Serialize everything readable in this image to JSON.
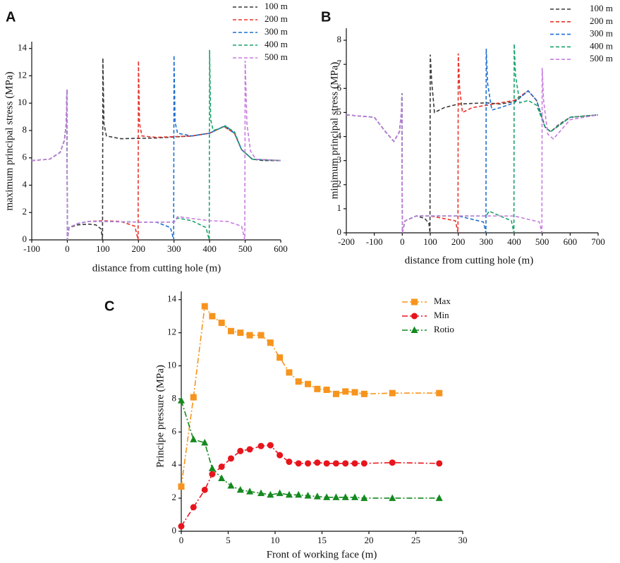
{
  "chart_data": [
    {
      "type": "line",
      "label": "A",
      "xlabel": "distance from cutting hole (m)",
      "ylabel": "maximum principal stress (MPa)",
      "xlim": [
        -100,
        600
      ],
      "ylim": [
        0,
        14.5
      ],
      "xticks": [
        -100,
        0,
        100,
        200,
        300,
        400,
        500,
        600
      ],
      "yticks": [
        0,
        2,
        4,
        6,
        8,
        10,
        12,
        14
      ],
      "line_style": "dashed",
      "series": [
        {
          "name": "100 m",
          "color": "#3a3a3a",
          "x": [
            -100,
            -50,
            -20,
            -8,
            -3,
            -1,
            0,
            5,
            30,
            60,
            80,
            95,
            99,
            100,
            103,
            110,
            150,
            250,
            350,
            400,
            440,
            470,
            490,
            520,
            550,
            600
          ],
          "values": [
            5.8,
            5.9,
            6.4,
            7.3,
            8.5,
            11,
            0,
            0.9,
            1.1,
            1.15,
            1.1,
            0.8,
            0,
            13.3,
            8.5,
            7.6,
            7.4,
            7.45,
            7.6,
            7.8,
            8.3,
            7.8,
            6.6,
            5.9,
            5.8,
            5.8
          ]
        },
        {
          "name": "200 m",
          "color": "#e8332a",
          "x": [
            -100,
            -50,
            -20,
            -8,
            -3,
            -1,
            0,
            5,
            30,
            60,
            100,
            150,
            190,
            199,
            200,
            203,
            210,
            250,
            350,
            400,
            440,
            470,
            490,
            520,
            600
          ],
          "values": [
            5.8,
            5.9,
            6.4,
            7.3,
            8.5,
            11,
            0,
            0.9,
            1.2,
            1.35,
            1.4,
            1.35,
            1.0,
            0,
            13.1,
            8.5,
            7.6,
            7.5,
            7.6,
            7.8,
            8.3,
            7.8,
            6.6,
            5.9,
            5.8
          ]
        },
        {
          "name": "300 m",
          "color": "#1f6fd1",
          "x": [
            -100,
            -50,
            -20,
            -8,
            -3,
            -1,
            0,
            5,
            30,
            60,
            100,
            200,
            250,
            290,
            299,
            300,
            303,
            310,
            350,
            400,
            445,
            470,
            490,
            520,
            600
          ],
          "values": [
            5.8,
            5.9,
            6.4,
            7.3,
            8.5,
            11,
            0,
            0.9,
            1.2,
            1.35,
            1.35,
            1.3,
            1.3,
            0.9,
            0,
            13.5,
            8.6,
            7.8,
            7.6,
            7.8,
            8.35,
            7.8,
            6.6,
            5.9,
            5.8
          ]
        },
        {
          "name": "400 m",
          "color": "#1aa36a",
          "x": [
            -100,
            -50,
            -20,
            -8,
            -3,
            -1,
            0,
            5,
            30,
            60,
            100,
            200,
            300,
            310,
            350,
            390,
            399,
            400,
            403,
            410,
            445,
            470,
            490,
            520,
            600
          ],
          "values": [
            5.8,
            5.9,
            6.4,
            7.3,
            8.5,
            11,
            0,
            0.9,
            1.2,
            1.35,
            1.35,
            1.3,
            1.3,
            1.6,
            1.4,
            0.9,
            0,
            13.9,
            8.8,
            8.0,
            8.3,
            7.9,
            6.6,
            5.9,
            5.8
          ]
        },
        {
          "name": "500 m",
          "color": "#c77ce0",
          "x": [
            -100,
            -50,
            -20,
            -8,
            -3,
            -1,
            0,
            5,
            30,
            60,
            100,
            200,
            300,
            310,
            400,
            450,
            490,
            499,
            500,
            505,
            515,
            530,
            600
          ],
          "values": [
            5.8,
            5.9,
            6.4,
            7.3,
            8.5,
            11,
            0,
            0.9,
            1.2,
            1.35,
            1.35,
            1.3,
            1.3,
            1.7,
            1.4,
            1.35,
            1.0,
            0,
            13.1,
            8.5,
            6.5,
            5.9,
            5.8
          ]
        }
      ]
    },
    {
      "type": "line",
      "label": "B",
      "xlabel": "distance from cutting hole (m)",
      "ylabel": "minimum principal stress (MPa)",
      "xlim": [
        -200,
        700
      ],
      "ylim": [
        0,
        8.5
      ],
      "xticks": [
        -200,
        -100,
        0,
        100,
        200,
        300,
        400,
        500,
        600,
        700
      ],
      "yticks": [
        0,
        1,
        2,
        3,
        4,
        5,
        6,
        7,
        8
      ],
      "line_style": "dashed",
      "series": [
        {
          "name": "100 m",
          "color": "#3a3a3a",
          "x": [
            -200,
            -100,
            -60,
            -30,
            -10,
            -3,
            -1,
            0,
            10,
            50,
            80,
            95,
            99,
            100,
            105,
            115,
            150,
            200,
            300,
            350,
            400,
            450,
            480,
            510,
            530,
            560,
            600,
            700
          ],
          "values": [
            4.9,
            4.8,
            4.2,
            3.8,
            4.2,
            5.0,
            5.8,
            0,
            0.5,
            0.7,
            0.6,
            0.4,
            0,
            7.4,
            6.3,
            5.0,
            5.2,
            5.35,
            5.4,
            5.35,
            5.45,
            5.9,
            5.5,
            4.4,
            4.2,
            4.5,
            4.8,
            4.9
          ]
        },
        {
          "name": "200 m",
          "color": "#e8332a",
          "x": [
            -200,
            -100,
            -60,
            -30,
            -10,
            -3,
            -1,
            0,
            10,
            50,
            100,
            190,
            199,
            200,
            205,
            215,
            250,
            300,
            400,
            450,
            480,
            510,
            530,
            600,
            700
          ],
          "values": [
            4.9,
            4.8,
            4.2,
            3.8,
            4.2,
            5.0,
            5.8,
            0,
            0.5,
            0.7,
            0.7,
            0.5,
            0,
            7.45,
            6.0,
            5.0,
            5.2,
            5.3,
            5.5,
            5.9,
            5.5,
            4.4,
            4.2,
            4.8,
            4.9
          ]
        },
        {
          "name": "300 m",
          "color": "#1f6fd1",
          "x": [
            -200,
            -100,
            -60,
            -30,
            -10,
            -3,
            -1,
            0,
            10,
            50,
            200,
            290,
            299,
            300,
            305,
            320,
            350,
            400,
            450,
            480,
            510,
            530,
            600,
            700
          ],
          "values": [
            4.9,
            4.8,
            4.2,
            3.8,
            4.2,
            5.0,
            5.8,
            0,
            0.5,
            0.7,
            0.7,
            0.45,
            0,
            7.65,
            6.2,
            5.1,
            5.2,
            5.4,
            5.9,
            5.5,
            4.4,
            4.2,
            4.8,
            4.9
          ]
        },
        {
          "name": "400 m",
          "color": "#1aa36a",
          "x": [
            -200,
            -100,
            -60,
            -30,
            -10,
            -3,
            -1,
            0,
            10,
            50,
            300,
            310,
            390,
            399,
            400,
            405,
            420,
            450,
            480,
            510,
            530,
            600,
            700
          ],
          "values": [
            4.9,
            4.8,
            4.2,
            3.8,
            4.2,
            5.0,
            5.8,
            0,
            0.5,
            0.7,
            0.7,
            0.9,
            0.5,
            0,
            7.85,
            6.5,
            5.4,
            5.5,
            5.3,
            4.4,
            4.2,
            4.8,
            4.9
          ]
        },
        {
          "name": "500 m",
          "color": "#c77ce0",
          "x": [
            -200,
            -100,
            -60,
            -30,
            -10,
            -3,
            -1,
            0,
            10,
            50,
            400,
            490,
            499,
            500,
            505,
            520,
            540,
            600,
            700
          ],
          "values": [
            4.9,
            4.8,
            4.2,
            3.8,
            4.2,
            5.0,
            5.8,
            0,
            0.5,
            0.7,
            0.7,
            0.45,
            0,
            6.85,
            5.5,
            4.1,
            3.9,
            4.7,
            4.9
          ]
        }
      ]
    },
    {
      "type": "line",
      "label": "C",
      "xlabel": "Front of working face (m)",
      "ylabel": "Principe pressure (MPa)",
      "xlim": [
        0,
        30
      ],
      "ylim": [
        0,
        14.5
      ],
      "xticks": [
        0,
        5,
        10,
        15,
        20,
        25,
        30
      ],
      "yticks": [
        0,
        2,
        4,
        6,
        8,
        10,
        12,
        14
      ],
      "line_style": "dash-dot",
      "series": [
        {
          "name": "Max",
          "color": "#f7941d",
          "marker": "square",
          "x": [
            0,
            1.3,
            2.5,
            3.3,
            4.3,
            5.3,
            6.3,
            7.3,
            8.5,
            9.5,
            10.5,
            11.5,
            12.5,
            13.5,
            14.5,
            15.5,
            16.5,
            17.5,
            18.5,
            19.5,
            22.5,
            27.5
          ],
          "values": [
            2.7,
            8.1,
            13.6,
            13.0,
            12.6,
            12.1,
            12.0,
            11.85,
            11.85,
            11.4,
            10.5,
            9.6,
            9.05,
            8.9,
            8.6,
            8.55,
            8.3,
            8.45,
            8.4,
            8.3,
            8.35,
            8.35
          ]
        },
        {
          "name": "Min",
          "color": "#e8141c",
          "marker": "circle",
          "x": [
            0,
            1.3,
            2.5,
            3.3,
            4.3,
            5.3,
            6.3,
            7.3,
            8.5,
            9.5,
            10.5,
            11.5,
            12.5,
            13.5,
            14.5,
            15.5,
            16.5,
            17.5,
            18.5,
            19.5,
            22.5,
            27.5
          ],
          "values": [
            0.3,
            1.45,
            2.5,
            3.45,
            3.9,
            4.4,
            4.85,
            4.95,
            5.15,
            5.2,
            4.6,
            4.2,
            4.1,
            4.1,
            4.15,
            4.1,
            4.1,
            4.1,
            4.1,
            4.1,
            4.15,
            4.1
          ]
        },
        {
          "name": "Rotio",
          "color": "#15891f",
          "marker": "triangle",
          "x": [
            0,
            1.3,
            2.5,
            3.3,
            4.3,
            5.3,
            6.3,
            7.3,
            8.5,
            9.5,
            10.5,
            11.5,
            12.5,
            13.5,
            14.5,
            15.5,
            16.5,
            17.5,
            18.5,
            19.5,
            22.5,
            27.5
          ],
          "values": [
            7.9,
            5.55,
            5.35,
            3.8,
            3.2,
            2.75,
            2.5,
            2.4,
            2.3,
            2.2,
            2.3,
            2.2,
            2.2,
            2.15,
            2.1,
            2.05,
            2.05,
            2.05,
            2.05,
            2.0,
            2.0,
            2.0
          ]
        }
      ]
    }
  ]
}
